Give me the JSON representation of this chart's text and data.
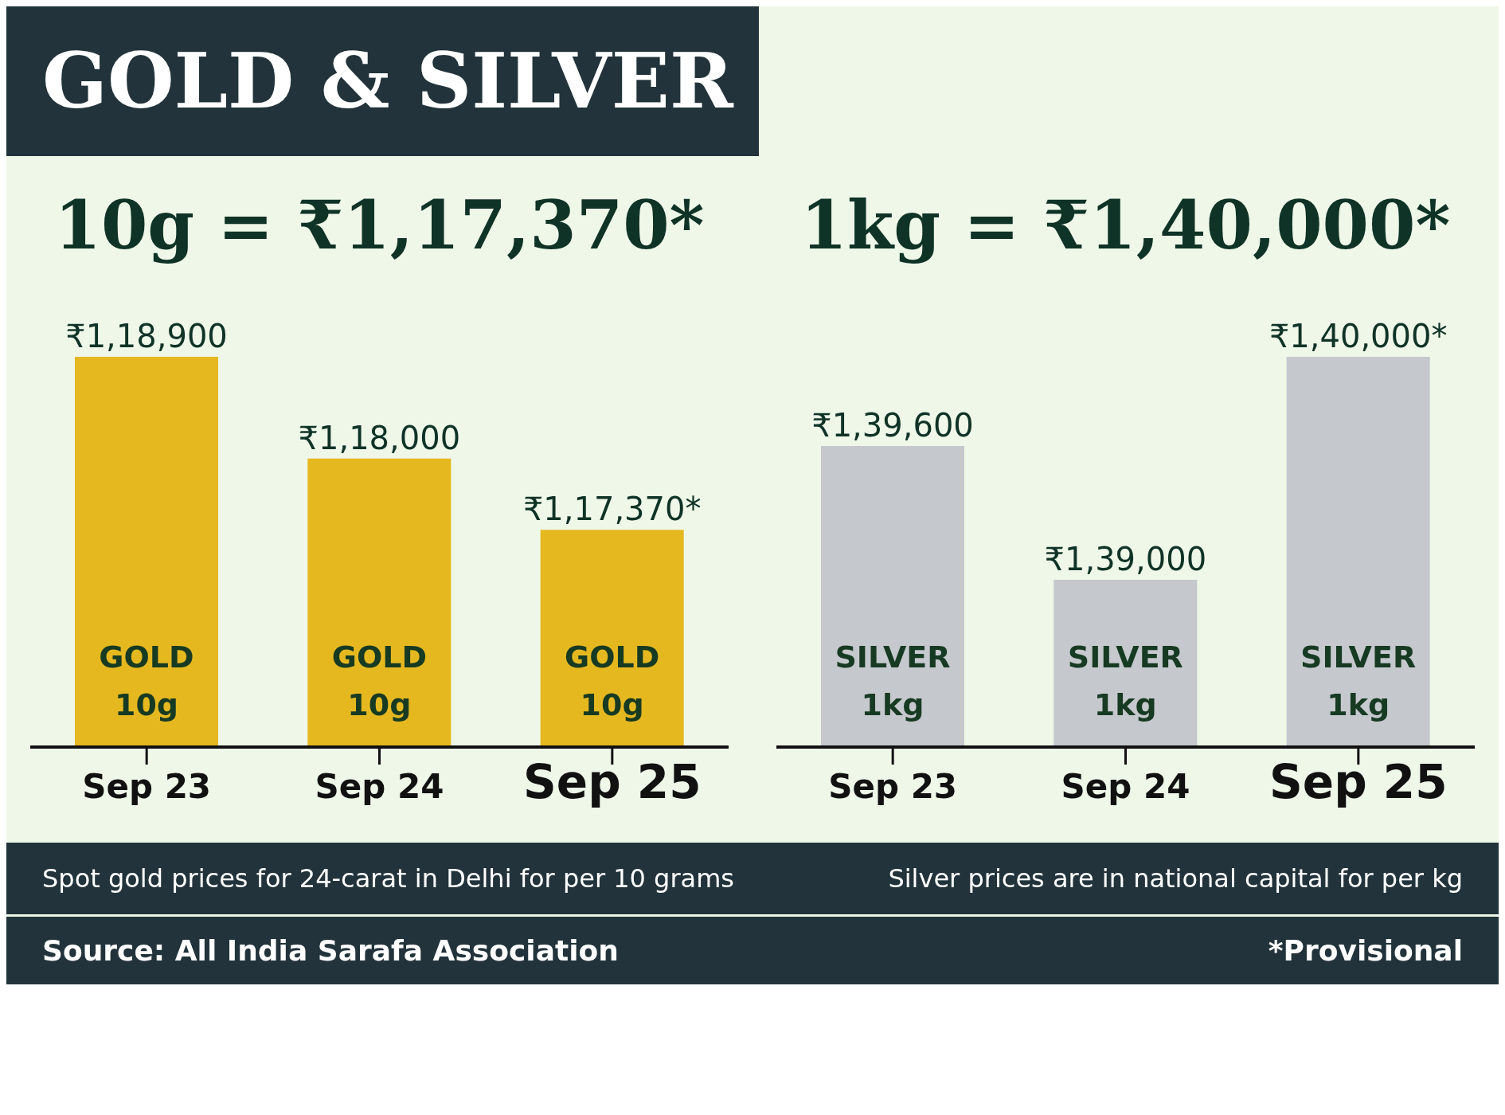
{
  "chart_data": [
    {
      "type": "bar",
      "title": "GOLD & SILVER",
      "subtitle": "10g = ₹1,17,370*",
      "categories": [
        "Sep 23",
        "Sep 24",
        "Sep 25"
      ],
      "values": [
        118900,
        118000,
        117370
      ],
      "value_labels": [
        "₹1,18,900",
        "₹1,18,000",
        "₹1,17,370*"
      ],
      "color": "#e6b820",
      "ylim": [
        115450,
        118900
      ],
      "tick_labels": "x",
      "grid": false,
      "legend": false,
      "annotations": [
        {
          "text": "GOLD 10g",
          "x": "Sep 23"
        },
        {
          "text": "GOLD 10g",
          "x": "Sep 24"
        },
        {
          "text": "GOLD 10g",
          "x": "Sep 25"
        },
        "Spot gold prices for 24-carat in Delhi for per 10 grams",
        "Source: All India Sarafa Association"
      ]
    },
    {
      "type": "bar",
      "subtitle": "1kg = ₹1,40,000*",
      "categories": [
        "Sep 23",
        "Sep 24",
        "Sep 25"
      ],
      "values": [
        139600,
        139000,
        140000
      ],
      "value_labels": [
        "₹1,39,600",
        "₹1,39,000",
        "₹1,40,000*"
      ],
      "color": "#c5c8cc",
      "ylim": [
        138250,
        140000
      ],
      "tick_labels": "x",
      "grid": false,
      "legend": false,
      "annotations": [
        {
          "text": "SILVER 1kg",
          "x": "Sep 23"
        },
        {
          "text": "SILVER 1kg",
          "x": "Sep 24"
        },
        {
          "text": "SILVER 1kg",
          "x": "Sep 25"
        },
        "Silver prices are in national capital for per kg",
        "*Provisional"
      ]
    }
  ]
}
